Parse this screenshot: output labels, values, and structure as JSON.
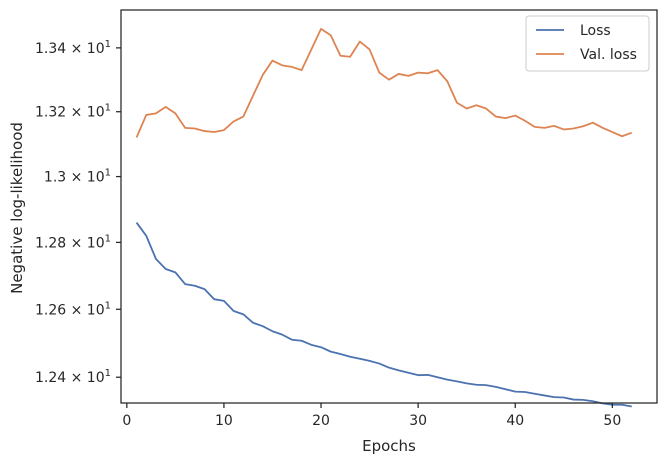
{
  "chart_data": {
    "type": "line",
    "title": "",
    "xlabel": "Epochs",
    "ylabel": "Negative log-likelihood",
    "xlim": [
      -0.6,
      54.6
    ],
    "ylim": [
      12.325,
      13.52
    ],
    "yscale": "log",
    "grid": false,
    "legend_position": "top-right",
    "x_ticks": [
      0,
      10,
      20,
      30,
      40,
      50
    ],
    "y_ticks": [
      {
        "value": 12.4,
        "mantissa": "1.24",
        "base": "10",
        "exp": "1"
      },
      {
        "value": 12.6,
        "mantissa": "1.26",
        "base": "10",
        "exp": "1"
      },
      {
        "value": 12.8,
        "mantissa": "1.28",
        "base": "10",
        "exp": "1"
      },
      {
        "value": 13.0,
        "mantissa": "1.3",
        "base": "10",
        "exp": "1"
      },
      {
        "value": 13.2,
        "mantissa": "1.32",
        "base": "10",
        "exp": "1"
      },
      {
        "value": 13.4,
        "mantissa": "1.34",
        "base": "10",
        "exp": "1"
      }
    ],
    "x": [
      1,
      2,
      3,
      4,
      5,
      6,
      7,
      8,
      9,
      10,
      11,
      12,
      13,
      14,
      15,
      16,
      17,
      18,
      19,
      20,
      21,
      22,
      23,
      24,
      25,
      26,
      27,
      28,
      29,
      30,
      31,
      32,
      33,
      34,
      35,
      36,
      37,
      38,
      39,
      40,
      41,
      42,
      43,
      44,
      45,
      46,
      47,
      48,
      49,
      50,
      51,
      52
    ],
    "series": [
      {
        "name": "Loss",
        "color": "#4c72b0",
        "values": [
          12.86,
          12.82,
          12.75,
          12.72,
          12.71,
          12.675,
          12.67,
          12.66,
          12.63,
          12.625,
          12.595,
          12.585,
          12.56,
          12.55,
          12.535,
          12.525,
          12.51,
          12.507,
          12.495,
          12.488,
          12.475,
          12.468,
          12.46,
          12.454,
          12.448,
          12.44,
          12.428,
          12.42,
          12.413,
          12.406,
          12.407,
          12.4,
          12.393,
          12.388,
          12.382,
          12.378,
          12.377,
          12.372,
          12.365,
          12.358,
          12.357,
          12.352,
          12.347,
          12.342,
          12.341,
          12.335,
          12.334,
          12.33,
          12.324,
          12.32,
          12.32,
          12.315
        ]
      },
      {
        "name": "Val. loss",
        "color": "#dd8452",
        "values": [
          13.12,
          13.19,
          13.195,
          13.215,
          13.195,
          13.15,
          13.148,
          13.14,
          13.137,
          13.143,
          13.17,
          13.185,
          13.25,
          13.315,
          13.36,
          13.345,
          13.34,
          13.33,
          13.395,
          13.46,
          13.44,
          13.375,
          13.372,
          13.42,
          13.395,
          13.322,
          13.3,
          13.318,
          13.312,
          13.322,
          13.32,
          13.33,
          13.295,
          13.228,
          13.21,
          13.22,
          13.21,
          13.185,
          13.18,
          13.188,
          13.172,
          13.153,
          13.15,
          13.156,
          13.145,
          13.148,
          13.155,
          13.166,
          13.15,
          13.137,
          13.124,
          13.135
        ]
      }
    ]
  }
}
